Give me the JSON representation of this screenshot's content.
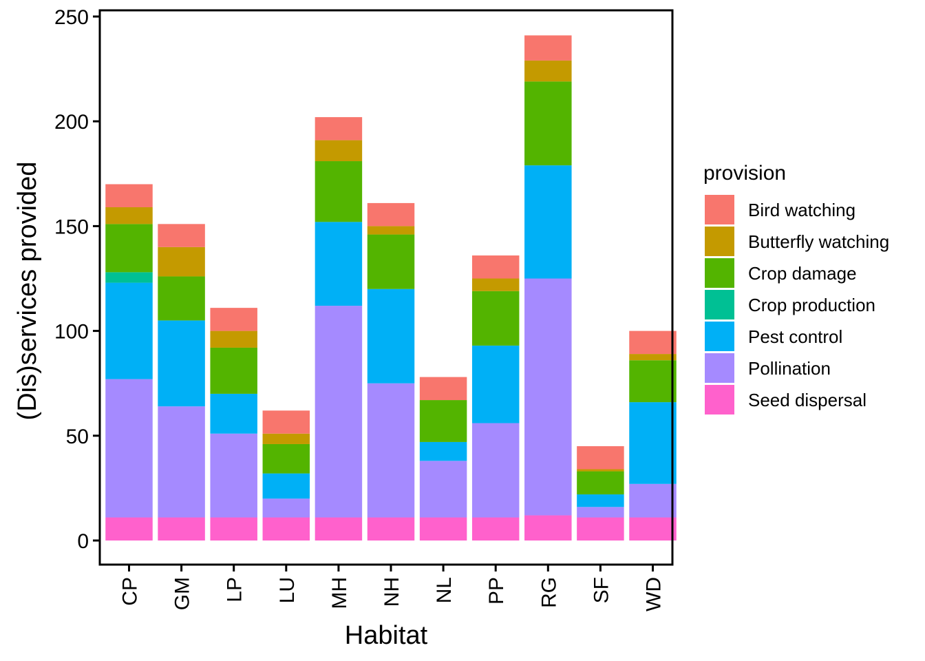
{
  "chart_data": {
    "type": "bar",
    "stacked": true,
    "xlabel": "Habitat",
    "ylabel": "(Dis)services provided",
    "ylim": [
      0,
      250
    ],
    "yticks": [
      0,
      50,
      100,
      150,
      200,
      250
    ],
    "categories": [
      "CP",
      "GM",
      "LP",
      "LU",
      "MH",
      "NH",
      "NL",
      "PP",
      "RG",
      "SF",
      "WD"
    ],
    "legend": {
      "title": "provision",
      "position": "right"
    },
    "grid": false,
    "series": [
      {
        "name": "Seed dispersal",
        "color": "#FF61CC",
        "values": [
          11,
          11,
          11,
          11,
          11,
          11,
          11,
          11,
          12,
          11,
          11
        ]
      },
      {
        "name": "Pollination",
        "color": "#A58AFF",
        "values": [
          66,
          53,
          40,
          9,
          101,
          64,
          27,
          45,
          113,
          5,
          16
        ]
      },
      {
        "name": "Pest control",
        "color": "#00B0F6",
        "values": [
          46,
          41,
          19,
          12,
          40,
          45,
          9,
          37,
          54,
          6,
          39
        ]
      },
      {
        "name": "Crop production",
        "color": "#00C094",
        "values": [
          5,
          0,
          0,
          0,
          0,
          0,
          0,
          0,
          0,
          0,
          0
        ]
      },
      {
        "name": "Crop damage",
        "color": "#53B400",
        "values": [
          23,
          21,
          22,
          14,
          29,
          26,
          20,
          26,
          40,
          11,
          20
        ]
      },
      {
        "name": "Butterfly watching",
        "color": "#C49A00",
        "values": [
          8,
          14,
          8,
          5,
          10,
          4,
          0,
          6,
          10,
          1,
          3
        ]
      },
      {
        "name": "Bird watching",
        "color": "#F8766D",
        "values": [
          11,
          11,
          11,
          11,
          11,
          11,
          11,
          11,
          12,
          11,
          11
        ]
      }
    ]
  }
}
